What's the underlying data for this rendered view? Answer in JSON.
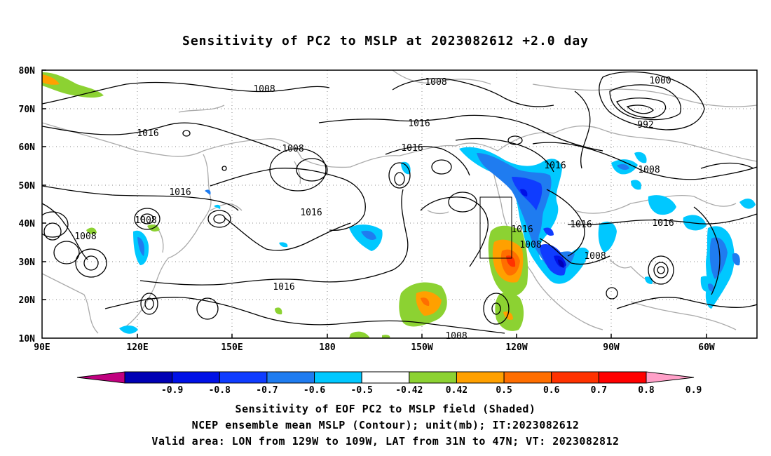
{
  "title": "Sensitivity of PC2 to MSLP at 2023082612 +2.0 day",
  "lat_labels": [
    "80N",
    "70N",
    "60N",
    "50N",
    "40N",
    "30N",
    "20N",
    "10N"
  ],
  "lon_labels": [
    "90E",
    "120E",
    "150E",
    "180",
    "150W",
    "120W",
    "90W",
    "60W"
  ],
  "contour_labels": [
    {
      "text": "1008"
    },
    {
      "text": "1008"
    },
    {
      "text": "1000"
    },
    {
      "text": "992"
    },
    {
      "text": "1016"
    },
    {
      "text": "1016"
    },
    {
      "text": "1008"
    },
    {
      "text": "1016"
    },
    {
      "text": "1016"
    },
    {
      "text": "1008"
    },
    {
      "text": "1016"
    },
    {
      "text": "1016"
    },
    {
      "text": "1008"
    },
    {
      "text": "1008"
    },
    {
      "text": "1016"
    },
    {
      "text": "1016"
    },
    {
      "text": "1016"
    },
    {
      "text": "1016"
    },
    {
      "text": "1008"
    },
    {
      "text": "1008"
    },
    {
      "text": "1008"
    }
  ],
  "colorbar": {
    "colors": [
      "#c0007f",
      "#0000b4",
      "#0011e6",
      "#0f3cff",
      "#1f7cf0",
      "#00c8ff",
      "#ffffff",
      "#8cd232",
      "#ffa000",
      "#ff6e00",
      "#ff3200",
      "#ff0000",
      "#ffa0c8"
    ],
    "labels": [
      "-0.9",
      "-0.8",
      "-0.7",
      "-0.6",
      "-0.5",
      "-0.42",
      "0.42",
      "0.5",
      "0.6",
      "0.7",
      "0.8",
      "0.9"
    ]
  },
  "captions": [
    "Sensitivity of EOF PC2 to MSLP field (Shaded)",
    "NCEP ensemble mean MSLP (Contour); unit(mb); IT:2023082612",
    "Valid area: LON from 129W to 109W, LAT from 31N to 47N; VT: 2023082812"
  ]
}
